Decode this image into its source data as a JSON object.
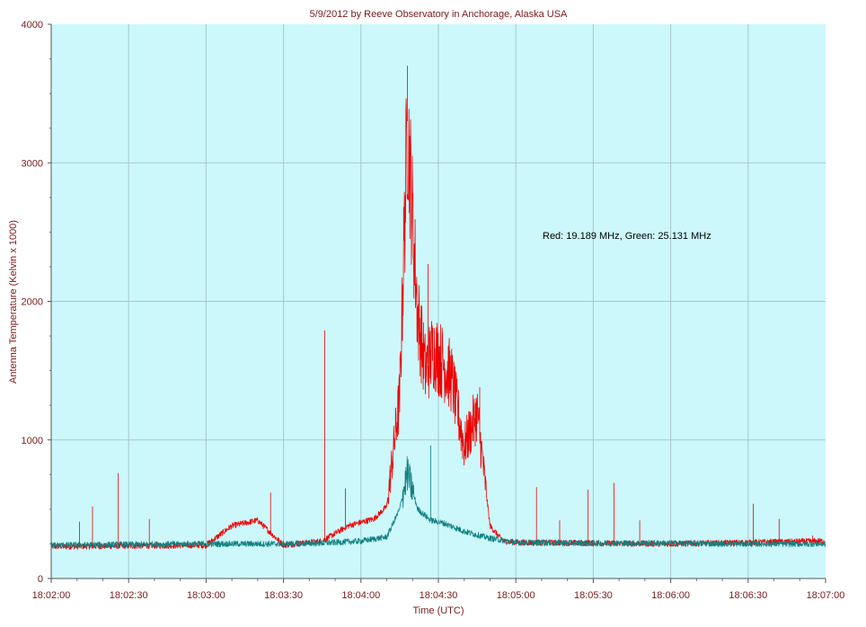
{
  "chart_data": {
    "type": "line",
    "title": "5/9/2012  by  Reeve Observatory  in  Anchorage, Alaska  USA",
    "xlabel": "Time (UTC)",
    "ylabel": "Antenna Temperature (Kelvin x 1000)",
    "annotation": "Red: 19.189 MHz, Green: 25.131 MHz",
    "ylim": [
      0,
      4000
    ],
    "xlim": [
      "18:02:00",
      "18:07:00"
    ],
    "x_unit_note": "time axis, values are clock times (UTC)",
    "x_ticks": [
      "18:02:00",
      "18:02:30",
      "18:03:00",
      "18:03:30",
      "18:04:00",
      "18:04:30",
      "18:05:00",
      "18:05:30",
      "18:06:00",
      "18:06:30",
      "18:07:00"
    ],
    "y_ticks": [
      0,
      1000,
      2000,
      3000,
      4000
    ],
    "grid": true,
    "colors": {
      "plot_bg": "#ccf8fb",
      "grid": "#a9c6cc",
      "axis_text": "#7a1a1a",
      "title_text": "#7a1a1a"
    },
    "series": [
      {
        "name": "19.189 MHz",
        "color": "#ee0000",
        "x": [
          "18:02:00",
          "18:02:30",
          "18:03:00",
          "18:03:10",
          "18:03:20",
          "18:03:30",
          "18:03:45",
          "18:03:55",
          "18:04:05",
          "18:04:10",
          "18:04:15",
          "18:04:18",
          "18:04:20",
          "18:04:22",
          "18:04:25",
          "18:04:28",
          "18:04:32",
          "18:04:35",
          "18:04:40",
          "18:04:45",
          "18:04:50",
          "18:04:55",
          "18:05:00",
          "18:05:30",
          "18:06:00",
          "18:06:30",
          "18:07:00"
        ],
        "y": [
          230,
          235,
          240,
          380,
          420,
          240,
          270,
          380,
          430,
          520,
          1300,
          3300,
          2600,
          1900,
          1500,
          1650,
          1550,
          1450,
          950,
          1200,
          380,
          270,
          260,
          255,
          250,
          260,
          270
        ]
      },
      {
        "name": "25.131 MHz",
        "color": "#0f8080",
        "x": [
          "18:02:00",
          "18:02:30",
          "18:03:00",
          "18:03:30",
          "18:03:45",
          "18:04:00",
          "18:04:10",
          "18:04:15",
          "18:04:18",
          "18:04:22",
          "18:04:27",
          "18:04:32",
          "18:04:40",
          "18:04:50",
          "18:05:00",
          "18:05:30",
          "18:06:00",
          "18:06:30",
          "18:07:00"
        ],
        "y": [
          240,
          245,
          250,
          250,
          255,
          270,
          300,
          500,
          760,
          500,
          420,
          400,
          340,
          290,
          260,
          255,
          255,
          250,
          250
        ]
      }
    ],
    "spikes": {
      "19.189 MHz": [
        {
          "x": "18:02:11",
          "y": 410
        },
        {
          "x": "18:02:16",
          "y": 520
        },
        {
          "x": "18:02:26",
          "y": 760
        },
        {
          "x": "18:02:38",
          "y": 430
        },
        {
          "x": "18:03:25",
          "y": 620
        },
        {
          "x": "18:03:46",
          "y": 1790
        },
        {
          "x": "18:03:54",
          "y": 650
        },
        {
          "x": "18:04:18",
          "y": 3700
        },
        {
          "x": "18:04:26",
          "y": 2270
        },
        {
          "x": "18:04:46",
          "y": 1380
        },
        {
          "x": "18:05:08",
          "y": 660
        },
        {
          "x": "18:05:17",
          "y": 420
        },
        {
          "x": "18:05:28",
          "y": 640
        },
        {
          "x": "18:05:38",
          "y": 690
        },
        {
          "x": "18:05:48",
          "y": 420
        },
        {
          "x": "18:06:32",
          "y": 540
        },
        {
          "x": "18:06:42",
          "y": 430
        },
        {
          "x": "18:06:55",
          "y": 310
        }
      ],
      "25.131 MHz": [
        {
          "x": "18:04:27",
          "y": 960
        },
        {
          "x": "18:04:20",
          "y": 700
        }
      ]
    }
  }
}
